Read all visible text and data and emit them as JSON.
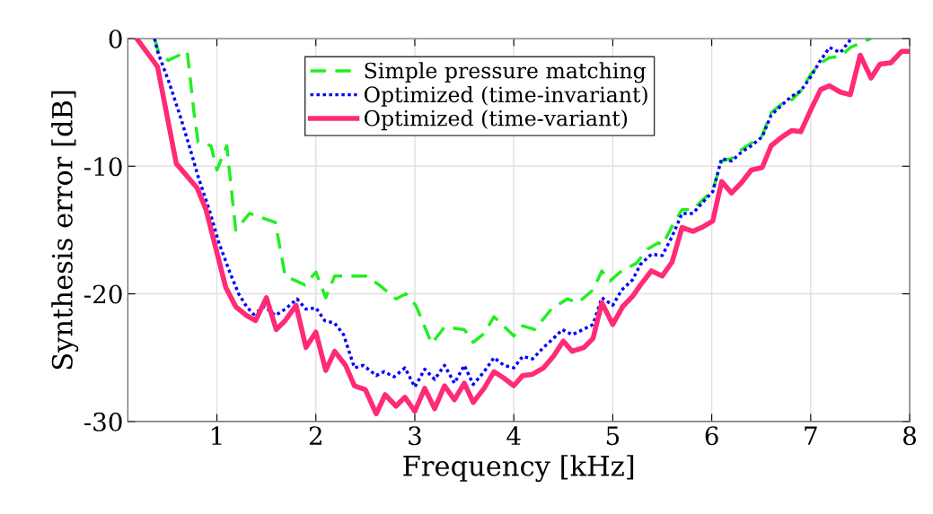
{
  "chart_data": {
    "type": "line",
    "xlabel": "Frequency [kHz]",
    "ylabel": "Synthesis error [dB]",
    "xlim": [
      0.1,
      8
    ],
    "xticks": [
      1,
      2,
      3,
      4,
      5,
      6,
      7,
      8
    ],
    "ylim": [
      -30,
      0
    ],
    "yticks": [
      0,
      -10,
      -20,
      -30
    ],
    "grid": true,
    "legend": "top",
    "marker": "none",
    "series": [
      {
        "name": "Simple pressure matching",
        "color": "#22ee22",
        "line_style": "dashed",
        "x": [
          0.37,
          0.42,
          0.51,
          0.7,
          0.77,
          0.81,
          0.94,
          1.0,
          1.1,
          1.19,
          1.33,
          1.59,
          1.69,
          1.89,
          2.0,
          2.1,
          2.19,
          2.42,
          2.5,
          2.64,
          2.81,
          2.91,
          3.01,
          3.17,
          3.3,
          3.5,
          3.59,
          3.7,
          3.8,
          4.0,
          4.09,
          4.21,
          4.38,
          4.54,
          4.65,
          4.8,
          4.89,
          4.97,
          5.09,
          5.24,
          5.35,
          5.46,
          5.5,
          5.6,
          5.7,
          5.81,
          5.9,
          6.01,
          6.1,
          6.2,
          6.3,
          6.4,
          6.51,
          6.6,
          6.71,
          6.81,
          6.9,
          7.0,
          7.1,
          7.19,
          7.3,
          7.4,
          7.61
        ],
        "values": [
          0,
          -1.3,
          -1.7,
          -1.0,
          -5.9,
          -8.1,
          -8.4,
          -10.3,
          -8.4,
          -15.0,
          -13.7,
          -14.4,
          -18.6,
          -19.3,
          -18.3,
          -20.3,
          -18.6,
          -18.6,
          -18.6,
          -19.3,
          -20.4,
          -20.0,
          -20.9,
          -23.9,
          -22.6,
          -22.8,
          -23.8,
          -23.1,
          -21.8,
          -23.3,
          -22.5,
          -22.8,
          -21.2,
          -20.4,
          -20.7,
          -19.7,
          -18.2,
          -19.0,
          -18.2,
          -17.6,
          -16.5,
          -16.0,
          -16.2,
          -14.7,
          -13.4,
          -13.4,
          -12.7,
          -11.9,
          -9.6,
          -9.4,
          -8.7,
          -8.2,
          -7.6,
          -5.8,
          -5.1,
          -4.8,
          -4.1,
          -2.8,
          -1.9,
          -1.5,
          -1.4,
          -0.7,
          0
        ]
      },
      {
        "name": "Optimized (time-invariant)",
        "color": "#0000ff",
        "line_style": "dotted",
        "x": [
          0.37,
          0.4,
          0.52,
          0.63,
          0.72,
          0.81,
          0.93,
          1.02,
          1.13,
          1.22,
          1.3,
          1.37,
          1.48,
          1.59,
          1.69,
          1.81,
          1.9,
          2.0,
          2.09,
          2.19,
          2.28,
          2.39,
          2.48,
          2.61,
          2.69,
          2.79,
          2.9,
          3.0,
          3.1,
          3.2,
          3.3,
          3.4,
          3.5,
          3.59,
          3.7,
          3.8,
          3.9,
          4.0,
          4.09,
          4.19,
          4.3,
          4.4,
          4.49,
          4.59,
          4.7,
          4.8,
          4.89,
          5.0,
          5.09,
          5.2,
          5.28,
          5.39,
          5.5,
          5.6,
          5.7,
          5.81,
          5.9,
          6.01,
          6.1,
          6.2,
          6.3,
          6.4,
          6.51,
          6.6,
          6.71,
          6.81,
          6.9,
          7.0,
          7.1,
          7.19,
          7.3,
          7.4
        ],
        "values": [
          0,
          -1.0,
          -3.5,
          -6.1,
          -8.4,
          -10.8,
          -13.6,
          -16.0,
          -18.3,
          -20.0,
          -21.0,
          -21.6,
          -21.0,
          -21.7,
          -21.2,
          -20.4,
          -21.2,
          -21.1,
          -22.1,
          -22.3,
          -23.2,
          -25.8,
          -25.6,
          -26.4,
          -26.1,
          -26.5,
          -25.8,
          -27.3,
          -25.9,
          -26.7,
          -25.6,
          -27.0,
          -25.6,
          -27.1,
          -26.1,
          -25.0,
          -25.6,
          -25.8,
          -24.9,
          -25.1,
          -24.2,
          -23.5,
          -22.8,
          -23.2,
          -22.8,
          -22.4,
          -20.3,
          -20.9,
          -19.7,
          -18.9,
          -17.7,
          -16.9,
          -17.0,
          -15.5,
          -13.7,
          -13.7,
          -12.9,
          -12.0,
          -9.4,
          -9.6,
          -8.9,
          -8.4,
          -7.7,
          -6.0,
          -5.2,
          -4.5,
          -4.1,
          -3.0,
          -1.7,
          -0.7,
          -1.1,
          -0.1
        ]
      },
      {
        "name": "Optimized (time-variant)",
        "color": "#ff2a78",
        "line_style": "solid",
        "x": [
          0.19,
          0.29,
          0.4,
          0.59,
          0.8,
          0.89,
          1.09,
          1.19,
          1.3,
          1.39,
          1.5,
          1.6,
          1.69,
          1.8,
          1.9,
          2.0,
          2.1,
          2.19,
          2.3,
          2.39,
          2.5,
          2.61,
          2.7,
          2.81,
          2.9,
          3.0,
          3.1,
          3.2,
          3.3,
          3.4,
          3.5,
          3.59,
          3.7,
          3.8,
          3.9,
          4.0,
          4.09,
          4.19,
          4.3,
          4.4,
          4.5,
          4.59,
          4.71,
          4.8,
          4.89,
          5.0,
          5.1,
          5.2,
          5.28,
          5.39,
          5.5,
          5.6,
          5.7,
          5.81,
          5.9,
          6.01,
          6.1,
          6.2,
          6.3,
          6.4,
          6.51,
          6.6,
          6.71,
          6.81,
          6.9,
          7.0,
          7.1,
          7.19,
          7.3,
          7.4,
          7.5,
          7.61,
          7.7,
          7.81,
          7.92,
          8.0
        ],
        "values": [
          0,
          -1.05,
          -2.2,
          -9.8,
          -11.7,
          -13.4,
          -19.5,
          -21.0,
          -21.7,
          -22.1,
          -20.3,
          -22.8,
          -22.1,
          -20.9,
          -24.2,
          -23.0,
          -26.0,
          -24.5,
          -25.6,
          -27.2,
          -27.5,
          -29.4,
          -27.9,
          -28.8,
          -28.1,
          -29.2,
          -27.4,
          -29.0,
          -27.2,
          -28.3,
          -27.0,
          -28.5,
          -27.4,
          -26.1,
          -26.6,
          -27.2,
          -26.4,
          -26.3,
          -25.8,
          -24.9,
          -23.7,
          -24.5,
          -24.2,
          -23.5,
          -20.7,
          -22.4,
          -21.0,
          -20.2,
          -19.3,
          -18.2,
          -18.6,
          -17.5,
          -14.8,
          -15.1,
          -14.8,
          -14.3,
          -11.2,
          -12.1,
          -11.3,
          -10.3,
          -10.1,
          -8.4,
          -7.7,
          -7.2,
          -7.3,
          -5.6,
          -4.0,
          -3.7,
          -4.2,
          -4.4,
          -1.3,
          -3.1,
          -2.0,
          -1.9,
          -1.0,
          -1.0
        ]
      }
    ]
  }
}
